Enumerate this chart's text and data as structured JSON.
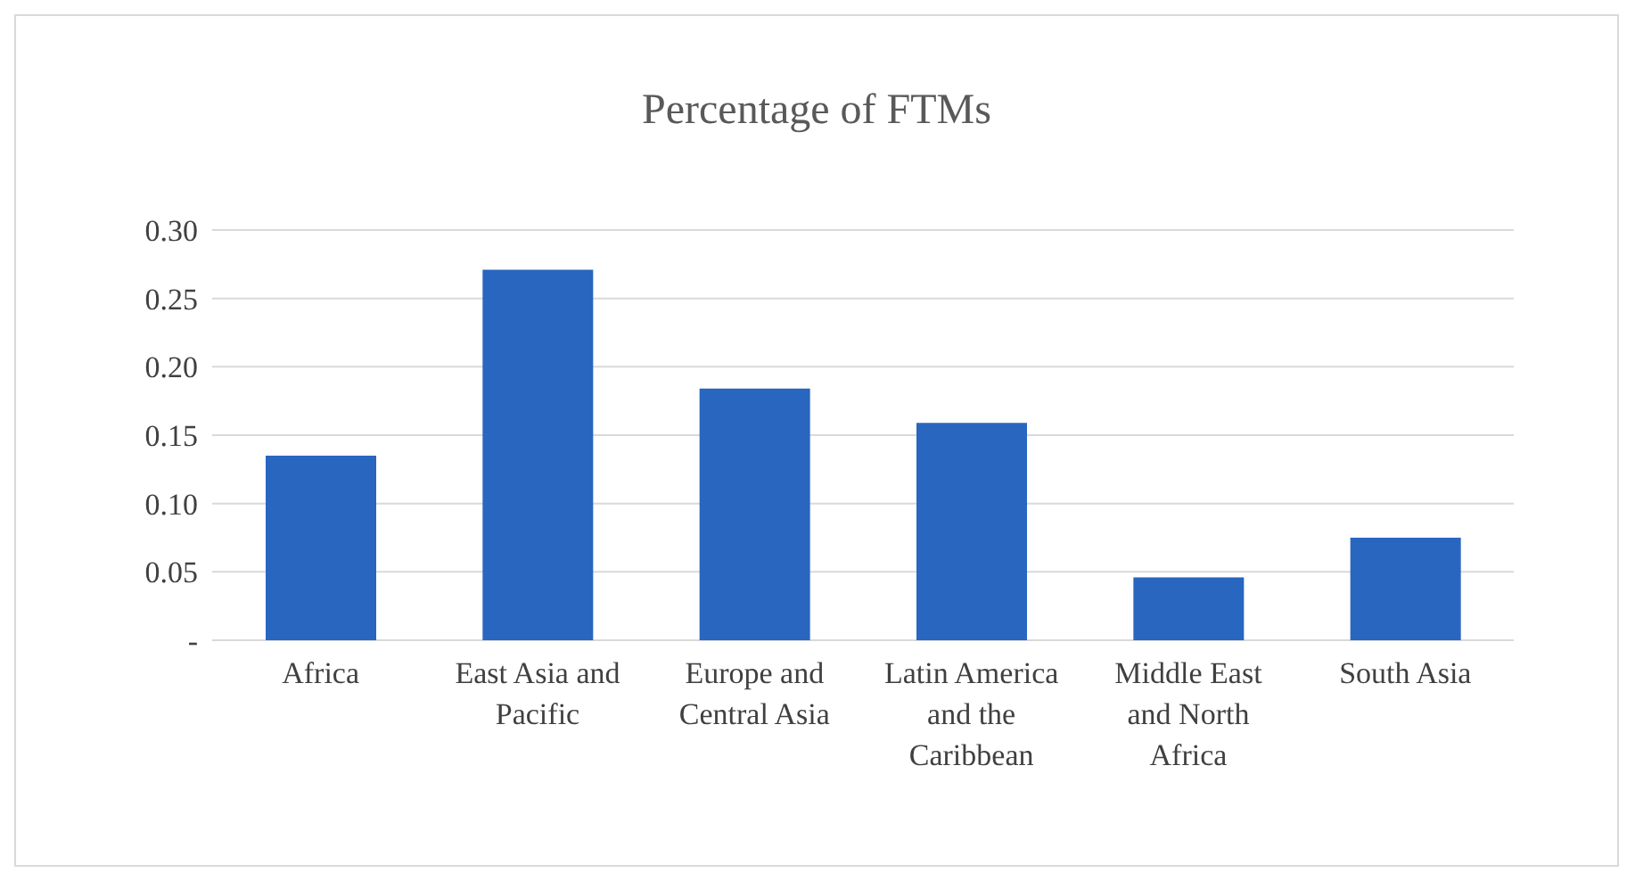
{
  "chart_data": {
    "type": "bar",
    "title": "Percentage of FTMs",
    "categories": [
      "Africa",
      "East Asia and Pacific",
      "Europe and Central Asia",
      "Latin America and the Caribbean",
      "Middle East and North Africa",
      "South Asia"
    ],
    "values": [
      0.135,
      0.271,
      0.184,
      0.159,
      0.046,
      0.075
    ],
    "color": "#2866c0",
    "ylim": [
      0,
      0.3
    ],
    "yticks": [
      {
        "value": 0,
        "label": "-"
      },
      {
        "value": 0.05,
        "label": "0.05"
      },
      {
        "value": 0.1,
        "label": "0.10"
      },
      {
        "value": 0.15,
        "label": "0.15"
      },
      {
        "value": 0.2,
        "label": "0.20"
      },
      {
        "value": 0.25,
        "label": "0.25"
      },
      {
        "value": 0.3,
        "label": "0.30"
      }
    ],
    "grid": true
  }
}
